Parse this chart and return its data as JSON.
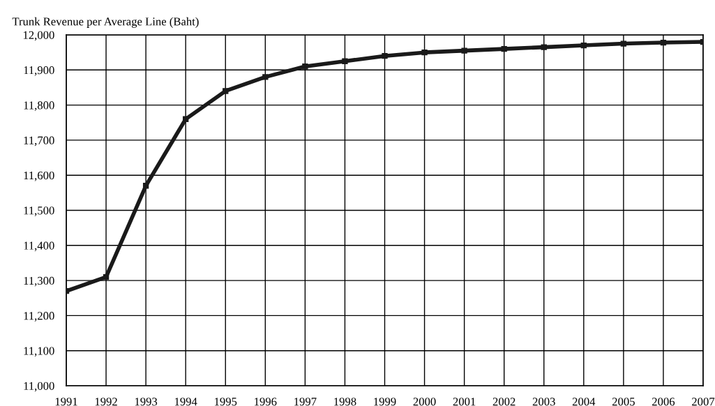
{
  "chart_data": {
    "type": "line",
    "ylabel": "Trunk Revenue per Average Line (Baht)",
    "x": [
      1991,
      1992,
      1993,
      1994,
      1995,
      1996,
      1997,
      1998,
      1999,
      2000,
      2001,
      2002,
      2003,
      2004,
      2005,
      2006,
      2007
    ],
    "series": [
      {
        "color": "#1a1a1a",
        "values": [
          11270,
          11310,
          11570,
          11760,
          11840,
          11880,
          11910,
          11925,
          11940,
          11950,
          11955,
          11960,
          11965,
          11970,
          11975,
          11978,
          11980
        ]
      }
    ],
    "xlim": [
      1991,
      2007
    ],
    "xticks": [
      1991,
      1992,
      1993,
      1994,
      1995,
      1996,
      1997,
      1998,
      1999,
      2000,
      2001,
      2002,
      2003,
      2004,
      2005,
      2006,
      2007
    ],
    "ylim": [
      11000,
      12000
    ],
    "yticks": [
      {
        "value": 11000,
        "label": "11,000"
      },
      {
        "value": 11100,
        "label": "11,100"
      },
      {
        "value": 11200,
        "label": "11,200"
      },
      {
        "value": 11300,
        "label": "11,300"
      },
      {
        "value": 11400,
        "label": "11,400"
      },
      {
        "value": 11500,
        "label": "11,500"
      },
      {
        "value": 11600,
        "label": "11,600"
      },
      {
        "value": 11700,
        "label": "11,700"
      },
      {
        "value": 11800,
        "label": "11,800"
      },
      {
        "value": 11900,
        "label": "11,900"
      },
      {
        "value": 12000,
        "label": "12,000"
      }
    ],
    "grid": true,
    "marker": "square",
    "line_style": "solid"
  }
}
